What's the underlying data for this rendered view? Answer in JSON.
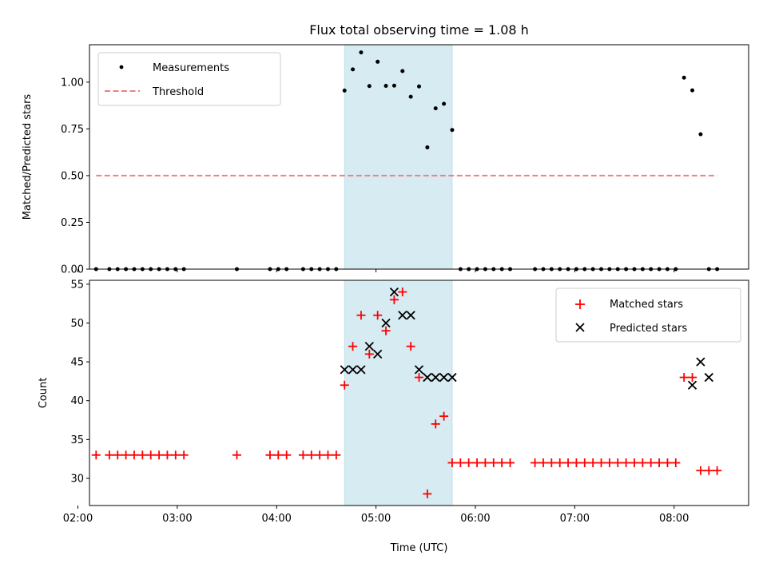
{
  "chart_data": [
    {
      "type": "scatter",
      "title": "Flux total observing time = 1.08 h",
      "ylabel": "Matched/Predicted stars",
      "xlabel": "",
      "ylim": [
        0,
        1.2
      ],
      "yticks": [
        0.0,
        0.25,
        0.5,
        0.75,
        1.0
      ],
      "ytick_labels": [
        "0.00",
        "0.25",
        "0.50",
        "0.75",
        "1.00"
      ],
      "xlim": [
        "02:07",
        "08:45"
      ],
      "shaded_span": [
        "04:41",
        "05:46"
      ],
      "legend": {
        "position": "upper-left",
        "entries": [
          "Measurements",
          "Threshold"
        ]
      },
      "series": [
        {
          "name": "Measurements",
          "marker": "dot",
          "color": "#000000",
          "x": [
            "02:11",
            "02:19",
            "02:24",
            "02:29",
            "02:34",
            "02:39",
            "02:44",
            "02:49",
            "02:54",
            "02:59",
            "03:04",
            "03:36",
            "03:56",
            "04:01",
            "04:06",
            "04:16",
            "04:21",
            "04:26",
            "04:31",
            "04:36",
            "04:41",
            "04:46",
            "04:51",
            "04:56",
            "05:01",
            "05:06",
            "05:11",
            "05:16",
            "05:21",
            "05:26",
            "05:31",
            "05:36",
            "05:41",
            "05:46",
            "05:51",
            "05:56",
            "06:01",
            "06:06",
            "06:11",
            "06:16",
            "06:21",
            "06:36",
            "06:41",
            "06:46",
            "06:51",
            "06:56",
            "07:01",
            "07:06",
            "07:11",
            "07:16",
            "07:21",
            "07:26",
            "07:31",
            "07:36",
            "07:41",
            "07:46",
            "07:51",
            "07:56",
            "08:01",
            "08:06",
            "08:11",
            "08:16",
            "08:21",
            "08:26"
          ],
          "y": [
            0,
            0,
            0,
            0,
            0,
            0,
            0,
            0,
            0,
            0,
            0,
            0,
            0,
            0,
            0,
            0,
            0,
            0,
            0,
            0,
            0.955,
            1.068,
            1.159,
            0.979,
            1.109,
            0.98,
            0.981,
            1.059,
            0.922,
            0.977,
            0.651,
            0.86,
            0.884,
            0.744,
            0,
            0,
            0,
            0,
            0,
            0,
            0,
            0,
            0,
            0,
            0,
            0,
            0,
            0,
            0,
            0,
            0,
            0,
            0,
            0,
            0,
            0,
            0,
            0,
            0,
            1.024,
            0.956,
            0.721,
            0,
            0
          ]
        },
        {
          "name": "Threshold",
          "style": "dashed",
          "color": "#f08080",
          "x": [
            "02:11",
            "08:26"
          ],
          "y": [
            0.5,
            0.5
          ]
        }
      ]
    },
    {
      "type": "scatter",
      "title": "",
      "ylabel": "Count",
      "xlabel": "Time (UTC)",
      "ylim": [
        26.5,
        55.5
      ],
      "yticks": [
        30,
        35,
        40,
        45,
        50,
        55
      ],
      "ytick_labels": [
        "30",
        "35",
        "40",
        "45",
        "50",
        "55"
      ],
      "xlim": [
        "02:07",
        "08:45"
      ],
      "xticks": [
        "02:00",
        "03:00",
        "04:00",
        "05:00",
        "06:00",
        "07:00",
        "08:00"
      ],
      "xtick_labels": [
        "02:00",
        "03:00",
        "04:00",
        "05:00",
        "06:00",
        "07:00",
        "08:00"
      ],
      "shaded_span": [
        "04:41",
        "05:46"
      ],
      "legend": {
        "position": "upper-right",
        "entries": [
          "Matched stars",
          "Predicted stars"
        ]
      },
      "series": [
        {
          "name": "Matched stars",
          "marker": "plus",
          "color": "#ff0000",
          "x": [
            "02:11",
            "02:19",
            "02:24",
            "02:29",
            "02:34",
            "02:39",
            "02:44",
            "02:49",
            "02:54",
            "02:59",
            "03:04",
            "03:36",
            "03:56",
            "04:01",
            "04:06",
            "04:16",
            "04:21",
            "04:26",
            "04:31",
            "04:36",
            "04:41",
            "04:46",
            "04:51",
            "04:56",
            "05:01",
            "05:06",
            "05:11",
            "05:16",
            "05:21",
            "05:26",
            "05:31",
            "05:36",
            "05:41",
            "05:46",
            "05:51",
            "05:56",
            "06:01",
            "06:06",
            "06:11",
            "06:16",
            "06:21",
            "06:36",
            "06:41",
            "06:46",
            "06:51",
            "06:56",
            "07:01",
            "07:06",
            "07:11",
            "07:16",
            "07:21",
            "07:26",
            "07:31",
            "07:36",
            "07:41",
            "07:46",
            "07:51",
            "07:56",
            "08:01",
            "08:06",
            "08:11",
            "08:16",
            "08:21",
            "08:26"
          ],
          "y": [
            33,
            33,
            33,
            33,
            33,
            33,
            33,
            33,
            33,
            33,
            33,
            33,
            33,
            33,
            33,
            33,
            33,
            33,
            33,
            33,
            42,
            47,
            51,
            46,
            51,
            49,
            53,
            54,
            47,
            43,
            28,
            37,
            38,
            32,
            32,
            32,
            32,
            32,
            32,
            32,
            32,
            32,
            32,
            32,
            32,
            32,
            32,
            32,
            32,
            32,
            32,
            32,
            32,
            32,
            32,
            32,
            32,
            32,
            32,
            43,
            43,
            31,
            31,
            31
          ]
        },
        {
          "name": "Predicted stars",
          "marker": "x",
          "color": "#000000",
          "x": [
            "04:41",
            "04:46",
            "04:51",
            "04:56",
            "05:01",
            "05:06",
            "05:11",
            "05:16",
            "05:21",
            "05:26",
            "05:31",
            "05:36",
            "05:41",
            "05:46",
            "08:11",
            "08:16",
            "08:21"
          ],
          "y": [
            44,
            44,
            44,
            47,
            46,
            50,
            54,
            51,
            51,
            44,
            43,
            43,
            43,
            43,
            42,
            45,
            43
          ]
        }
      ]
    }
  ]
}
